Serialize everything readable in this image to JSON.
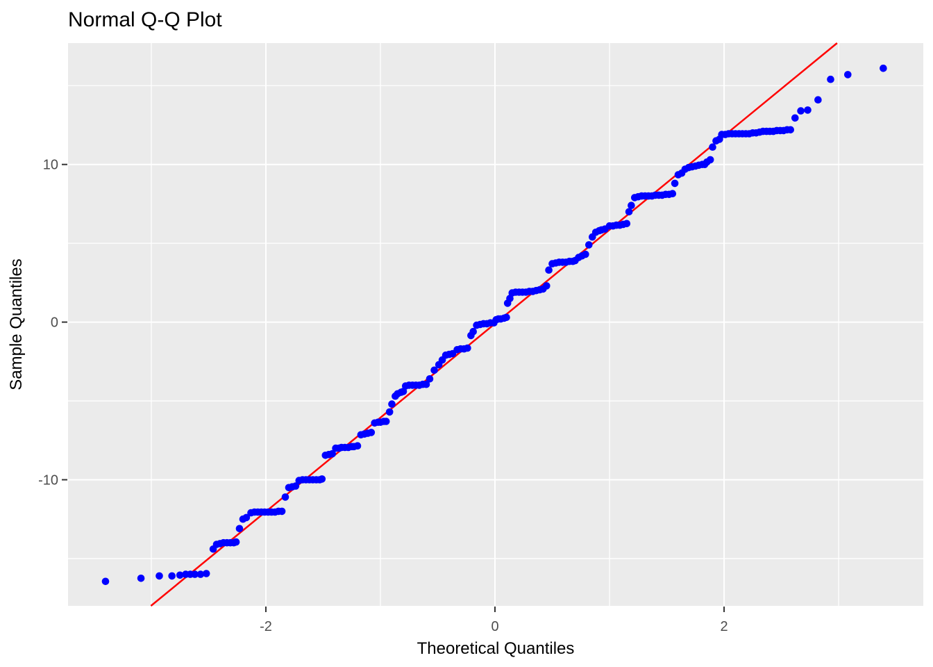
{
  "chart_data": {
    "type": "scatter",
    "title": "Normal Q-Q Plot",
    "xlabel": "Theoretical Quantiles",
    "ylabel": "Sample Quantiles",
    "xlim": [
      -3.727,
      3.739
    ],
    "ylim": [
      -18.0,
      17.7
    ],
    "grid": "on",
    "legend": "none",
    "x_major_breaks": [
      -2,
      0,
      2
    ],
    "x_minor_breaks": [
      -3,
      -1,
      1,
      3
    ],
    "y_major_breaks": [
      -10,
      0,
      10
    ],
    "y_minor_breaks": [
      -15,
      -5,
      5,
      15
    ],
    "x_tick_labels": [
      "-2",
      "0",
      "2"
    ],
    "y_tick_labels": [
      "-10",
      "0",
      "10"
    ],
    "colors": {
      "point": "#0000FF",
      "line": "#FF0000",
      "panel_background": "#EBEBEB",
      "grid": "#FFFFFF",
      "axis_text": "#4d4d4d",
      "tick_mark": "#333333",
      "title_text": "#000000"
    },
    "qq_line": {
      "slope": 5.96,
      "intercept": -0.1
    },
    "points": [
      [
        -3.4,
        -16.45
      ],
      [
        -3.09,
        -16.25
      ],
      [
        -2.93,
        -16.1
      ],
      [
        -2.82,
        -16.1
      ],
      [
        -2.75,
        -16.05
      ],
      [
        -2.7,
        -16.0
      ],
      [
        -2.66,
        -16.0
      ],
      [
        -2.62,
        -16.0
      ],
      [
        -2.57,
        -16.0
      ],
      [
        -2.52,
        -15.95
      ],
      [
        -2.46,
        -14.4
      ],
      [
        -2.43,
        -14.1
      ],
      [
        -2.4,
        -14.05
      ],
      [
        -2.37,
        -14.0
      ],
      [
        -2.34,
        -14.0
      ],
      [
        -2.31,
        -14.0
      ],
      [
        -2.28,
        -14.0
      ],
      [
        -2.26,
        -13.95
      ],
      [
        -2.23,
        -13.1
      ],
      [
        -2.2,
        -12.5
      ],
      [
        -2.17,
        -12.4
      ],
      [
        -2.13,
        -12.1
      ],
      [
        -2.1,
        -12.05
      ],
      [
        -2.07,
        -12.05
      ],
      [
        -2.04,
        -12.05
      ],
      [
        -2.01,
        -12.05
      ],
      [
        -1.98,
        -12.05
      ],
      [
        -1.95,
        -12.05
      ],
      [
        -1.92,
        -12.05
      ],
      [
        -1.89,
        -12.0
      ],
      [
        -1.86,
        -12.0
      ],
      [
        -1.83,
        -11.1
      ],
      [
        -1.8,
        -10.5
      ],
      [
        -1.77,
        -10.45
      ],
      [
        -1.74,
        -10.4
      ],
      [
        -1.71,
        -10.05
      ],
      [
        -1.68,
        -10.0
      ],
      [
        -1.65,
        -10.0
      ],
      [
        -1.62,
        -10.0
      ],
      [
        -1.59,
        -10.0
      ],
      [
        -1.56,
        -10.0
      ],
      [
        -1.53,
        -10.0
      ],
      [
        -1.51,
        -9.95
      ],
      [
        -1.48,
        -8.45
      ],
      [
        -1.45,
        -8.4
      ],
      [
        -1.42,
        -8.35
      ],
      [
        -1.39,
        -8.0
      ],
      [
        -1.36,
        -8.0
      ],
      [
        -1.34,
        -7.95
      ],
      [
        -1.31,
        -7.95
      ],
      [
        -1.28,
        -7.95
      ],
      [
        -1.25,
        -7.9
      ],
      [
        -1.23,
        -7.9
      ],
      [
        -1.2,
        -7.85
      ],
      [
        -1.17,
        -7.15
      ],
      [
        -1.14,
        -7.1
      ],
      [
        -1.11,
        -7.05
      ],
      [
        -1.08,
        -7.0
      ],
      [
        -1.05,
        -6.4
      ],
      [
        -1.02,
        -6.35
      ],
      [
        -1.0,
        -6.35
      ],
      [
        -0.97,
        -6.3
      ],
      [
        -0.95,
        -6.3
      ],
      [
        -0.92,
        -5.7
      ],
      [
        -0.9,
        -5.2
      ],
      [
        -0.87,
        -4.7
      ],
      [
        -0.85,
        -4.55
      ],
      [
        -0.82,
        -4.45
      ],
      [
        -0.8,
        -4.4
      ],
      [
        -0.78,
        -4.05
      ],
      [
        -0.75,
        -4.0
      ],
      [
        -0.72,
        -4.0
      ],
      [
        -0.69,
        -4.0
      ],
      [
        -0.66,
        -4.0
      ],
      [
        -0.63,
        -3.95
      ],
      [
        -0.6,
        -3.95
      ],
      [
        -0.57,
        -3.6
      ],
      [
        -0.53,
        -3.05
      ],
      [
        -0.49,
        -2.7
      ],
      [
        -0.46,
        -2.4
      ],
      [
        -0.43,
        -2.1
      ],
      [
        -0.4,
        -2.05
      ],
      [
        -0.37,
        -2.0
      ],
      [
        -0.33,
        -1.75
      ],
      [
        -0.3,
        -1.7
      ],
      [
        -0.27,
        -1.7
      ],
      [
        -0.24,
        -1.65
      ],
      [
        -0.21,
        -0.85
      ],
      [
        -0.19,
        -0.6
      ],
      [
        -0.16,
        -0.2
      ],
      [
        -0.13,
        -0.15
      ],
      [
        -0.1,
        -0.1
      ],
      [
        -0.07,
        -0.1
      ],
      [
        -0.04,
        -0.05
      ],
      [
        -0.01,
        -0.05
      ],
      [
        0.01,
        0.15
      ],
      [
        0.03,
        0.2
      ],
      [
        0.05,
        0.2
      ],
      [
        0.08,
        0.25
      ],
      [
        0.1,
        0.3
      ],
      [
        0.11,
        1.2
      ],
      [
        0.13,
        1.5
      ],
      [
        0.15,
        1.85
      ],
      [
        0.18,
        1.9
      ],
      [
        0.21,
        1.9
      ],
      [
        0.24,
        1.9
      ],
      [
        0.27,
        1.9
      ],
      [
        0.3,
        1.95
      ],
      [
        0.33,
        1.95
      ],
      [
        0.36,
        2.0
      ],
      [
        0.39,
        2.05
      ],
      [
        0.42,
        2.1
      ],
      [
        0.45,
        2.3
      ],
      [
        0.47,
        3.3
      ],
      [
        0.5,
        3.7
      ],
      [
        0.53,
        3.75
      ],
      [
        0.56,
        3.8
      ],
      [
        0.59,
        3.8
      ],
      [
        0.62,
        3.8
      ],
      [
        0.65,
        3.85
      ],
      [
        0.68,
        3.85
      ],
      [
        0.7,
        3.9
      ],
      [
        0.73,
        4.1
      ],
      [
        0.76,
        4.2
      ],
      [
        0.79,
        4.3
      ],
      [
        0.82,
        4.9
      ],
      [
        0.85,
        5.4
      ],
      [
        0.88,
        5.7
      ],
      [
        0.91,
        5.8
      ],
      [
        0.93,
        5.85
      ],
      [
        0.96,
        5.9
      ],
      [
        1.0,
        6.1
      ],
      [
        1.03,
        6.1
      ],
      [
        1.06,
        6.15
      ],
      [
        1.09,
        6.15
      ],
      [
        1.12,
        6.2
      ],
      [
        1.15,
        6.25
      ],
      [
        1.17,
        7.0
      ],
      [
        1.19,
        7.4
      ],
      [
        1.22,
        7.9
      ],
      [
        1.25,
        7.95
      ],
      [
        1.28,
        8.0
      ],
      [
        1.31,
        8.0
      ],
      [
        1.34,
        8.0
      ],
      [
        1.37,
        8.0
      ],
      [
        1.4,
        8.05
      ],
      [
        1.43,
        8.05
      ],
      [
        1.46,
        8.05
      ],
      [
        1.49,
        8.1
      ],
      [
        1.52,
        8.1
      ],
      [
        1.55,
        8.15
      ],
      [
        1.57,
        8.8
      ],
      [
        1.6,
        9.35
      ],
      [
        1.63,
        9.45
      ],
      [
        1.66,
        9.7
      ],
      [
        1.69,
        9.8
      ],
      [
        1.72,
        9.85
      ],
      [
        1.75,
        9.9
      ],
      [
        1.78,
        9.95
      ],
      [
        1.81,
        10.0
      ],
      [
        1.83,
        10.0
      ],
      [
        1.85,
        10.15
      ],
      [
        1.88,
        10.3
      ],
      [
        1.9,
        11.1
      ],
      [
        1.93,
        11.5
      ],
      [
        1.96,
        11.6
      ],
      [
        1.98,
        11.9
      ],
      [
        2.01,
        11.9
      ],
      [
        2.04,
        11.95
      ],
      [
        2.07,
        11.95
      ],
      [
        2.1,
        11.95
      ],
      [
        2.13,
        11.95
      ],
      [
        2.16,
        11.95
      ],
      [
        2.19,
        11.95
      ],
      [
        2.22,
        11.95
      ],
      [
        2.25,
        12.0
      ],
      [
        2.28,
        12.0
      ],
      [
        2.31,
        12.05
      ],
      [
        2.34,
        12.1
      ],
      [
        2.37,
        12.1
      ],
      [
        2.4,
        12.1
      ],
      [
        2.43,
        12.1
      ],
      [
        2.46,
        12.15
      ],
      [
        2.49,
        12.15
      ],
      [
        2.52,
        12.15
      ],
      [
        2.55,
        12.2
      ],
      [
        2.58,
        12.2
      ],
      [
        2.62,
        12.95
      ],
      [
        2.67,
        13.4
      ],
      [
        2.73,
        13.45
      ],
      [
        2.82,
        14.1
      ],
      [
        2.93,
        15.4
      ],
      [
        3.08,
        15.7
      ],
      [
        3.39,
        16.1
      ]
    ]
  }
}
